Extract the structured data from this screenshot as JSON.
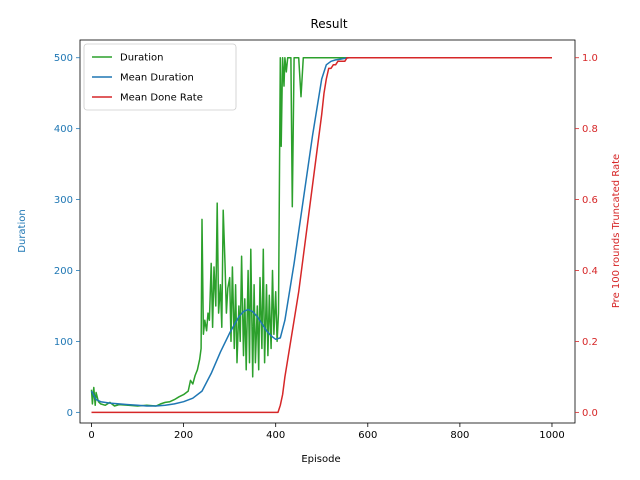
{
  "chart_data": {
    "type": "line",
    "title": "Result",
    "xlabel": "Episode",
    "ylabel": "Duration",
    "ylabel_right": "Pre 100 rounds Truncated Rate",
    "xlim": [
      -25,
      1050
    ],
    "ylim": [
      -15,
      525
    ],
    "ylim_right": [
      -0.03,
      1.05
    ],
    "x_ticks": [
      0,
      200,
      400,
      600,
      800,
      1000
    ],
    "y_ticks": [
      0,
      100,
      200,
      300,
      400,
      500
    ],
    "y_ticks_right": [
      0.0,
      0.2,
      0.4,
      0.6,
      0.8,
      1.0
    ],
    "x_tick_labels": [
      "0",
      "200",
      "400",
      "600",
      "800",
      "1000"
    ],
    "y_tick_labels": [
      "0",
      "100",
      "200",
      "300",
      "400",
      "500"
    ],
    "y_tick_labels_right": [
      "0.0",
      "0.2",
      "0.4",
      "0.6",
      "0.8",
      "1.0"
    ],
    "grid": false,
    "legend_position": "top-left",
    "colors": {
      "left_axis": "#1f77b4",
      "right_axis": "#d62728"
    },
    "series": [
      {
        "name": "Duration",
        "axis": "left",
        "color": "#2ca02c",
        "x": [
          0,
          2,
          5,
          8,
          10,
          15,
          20,
          30,
          40,
          50,
          60,
          80,
          100,
          120,
          140,
          150,
          160,
          170,
          180,
          190,
          200,
          210,
          215,
          220,
          225,
          230,
          235,
          238,
          240,
          243,
          246,
          250,
          253,
          256,
          260,
          263,
          266,
          270,
          273,
          276,
          280,
          283,
          286,
          290,
          293,
          296,
          300,
          303,
          306,
          310,
          313,
          316,
          320,
          323,
          326,
          330,
          333,
          336,
          340,
          343,
          346,
          350,
          353,
          356,
          360,
          363,
          366,
          370,
          373,
          376,
          380,
          383,
          386,
          390,
          393,
          396,
          400,
          403,
          406,
          410,
          412,
          415,
          418,
          420,
          423,
          426,
          430,
          433,
          436,
          440,
          443,
          446,
          450,
          455,
          460,
          465,
          470,
          480,
          500,
          600,
          700,
          800,
          900,
          1000
        ],
        "values": [
          32,
          12,
          35,
          10,
          28,
          15,
          12,
          10,
          14,
          9,
          11,
          10,
          9,
          10,
          9,
          12,
          14,
          15,
          18,
          22,
          25,
          30,
          45,
          40,
          52,
          60,
          75,
          90,
          272,
          110,
          130,
          115,
          140,
          130,
          210,
          120,
          205,
          150,
          295,
          140,
          180,
          120,
          285,
          210,
          140,
          175,
          190,
          100,
          205,
          90,
          180,
          70,
          150,
          100,
          220,
          80,
          160,
          60,
          200,
          70,
          230,
          50,
          180,
          70,
          150,
          60,
          190,
          90,
          230,
          70,
          180,
          80,
          165,
          90,
          200,
          110,
          170,
          100,
          140,
          500,
          375,
          500,
          460,
          500,
          480,
          500,
          500,
          500,
          290,
          500,
          500,
          500,
          500,
          445,
          500,
          500,
          500,
          500,
          500,
          500,
          500,
          500,
          500,
          500
        ]
      },
      {
        "name": "Mean Duration",
        "axis": "left",
        "color": "#1f77b4",
        "x": [
          0,
          10,
          20,
          40,
          60,
          80,
          100,
          120,
          140,
          160,
          180,
          200,
          220,
          240,
          260,
          280,
          300,
          320,
          330,
          340,
          350,
          360,
          370,
          380,
          390,
          400,
          410,
          420,
          430,
          440,
          450,
          460,
          470,
          480,
          490,
          500,
          510,
          520,
          530,
          540,
          550,
          560,
          600,
          700,
          800,
          900,
          1000
        ],
        "values": [
          30,
          18,
          15,
          13,
          12,
          11,
          10,
          9,
          9,
          10,
          12,
          15,
          20,
          30,
          55,
          85,
          112,
          135,
          142,
          145,
          142,
          135,
          125,
          115,
          108,
          103,
          105,
          130,
          170,
          210,
          255,
          300,
          345,
          390,
          430,
          470,
          490,
          495,
          497,
          498,
          499,
          500,
          500,
          500,
          500,
          500,
          500
        ]
      },
      {
        "name": "Mean Done Rate",
        "axis": "right",
        "color": "#d62728",
        "x": [
          0,
          200,
          405,
          410,
          415,
          420,
          425,
          430,
          440,
          450,
          460,
          470,
          480,
          490,
          500,
          505,
          510,
          515,
          520,
          525,
          530,
          535,
          540,
          545,
          550,
          555,
          560,
          600,
          700,
          800,
          900,
          1000
        ],
        "values": [
          0.0,
          0.0,
          0.0,
          0.02,
          0.05,
          0.1,
          0.14,
          0.18,
          0.26,
          0.34,
          0.44,
          0.54,
          0.64,
          0.74,
          0.84,
          0.9,
          0.94,
          0.97,
          0.97,
          0.98,
          0.98,
          0.99,
          0.99,
          0.99,
          0.99,
          1.0,
          1.0,
          1.0,
          1.0,
          1.0,
          1.0,
          1.0
        ]
      }
    ]
  }
}
